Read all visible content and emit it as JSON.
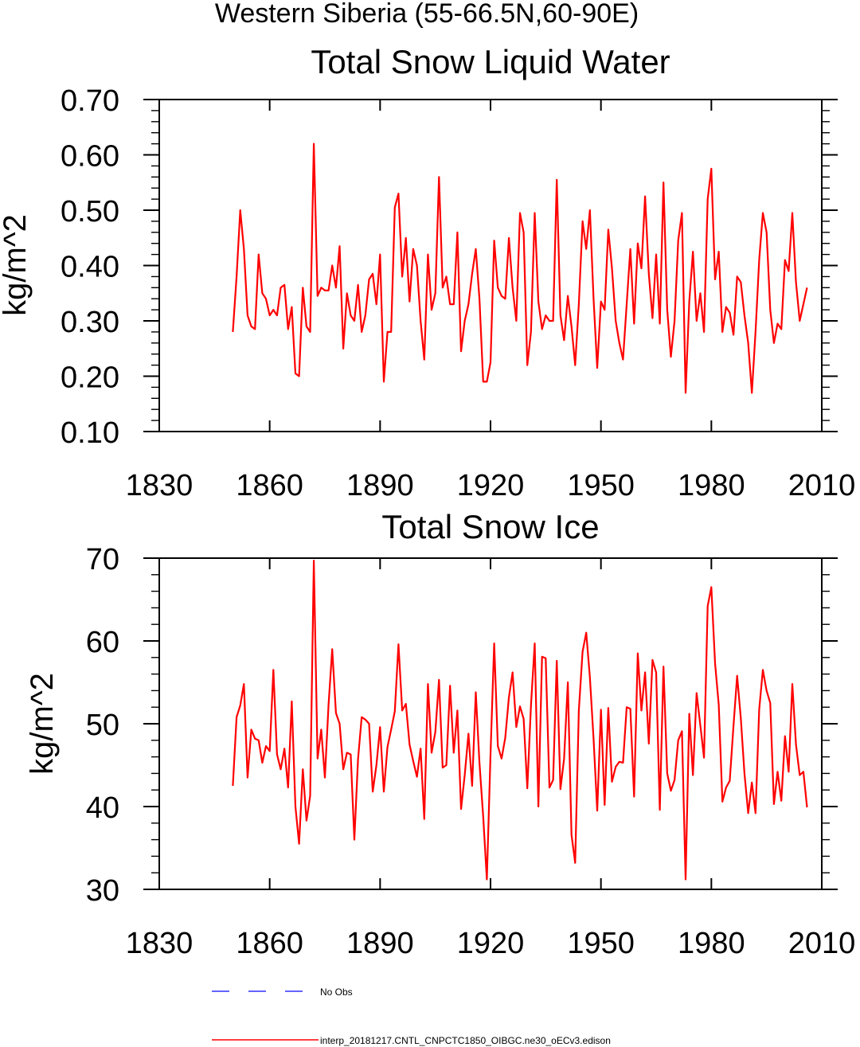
{
  "figure_title": "Western Siberia (55-66.5N,60-90E)",
  "legend": [
    {
      "label": "No Obs",
      "color": "#3030ff",
      "style": "dashed"
    },
    {
      "label": "interp_20181217.CNTL_CNPCTC1850_OIBGC.ne30_oECv3.edison",
      "color": "#ff0000",
      "style": "solid"
    }
  ],
  "chart_data": [
    {
      "type": "line",
      "title": "Total Snow Liquid Water",
      "xlabel": "",
      "ylabel": "kg/m^2",
      "xlim": [
        1830,
        2010
      ],
      "ylim": [
        0.1,
        0.7
      ],
      "xticks": [
        1830,
        1860,
        1890,
        1920,
        1950,
        1980,
        2010
      ],
      "xtick_labels": [
        "1830",
        "1860",
        "1890",
        "1920",
        "1950",
        "1980",
        "2010"
      ],
      "yticks": [
        0.1,
        0.2,
        0.3,
        0.4,
        0.5,
        0.6,
        0.7
      ],
      "ytick_labels": [
        "0.10",
        "0.20",
        "0.30",
        "0.40",
        "0.50",
        "0.60",
        "0.70"
      ],
      "series": [
        {
          "name": "interp_20181217.CNTL_CNPCTC1850_OIBGC.ne30_oECv3.edison",
          "color": "#ff0000",
          "x_start": 1850,
          "values": [
            0.28,
            0.38,
            0.5,
            0.43,
            0.31,
            0.29,
            0.285,
            0.42,
            0.35,
            0.34,
            0.31,
            0.32,
            0.31,
            0.36,
            0.365,
            0.285,
            0.325,
            0.205,
            0.2,
            0.36,
            0.29,
            0.28,
            0.62,
            0.345,
            0.36,
            0.355,
            0.355,
            0.4,
            0.36,
            0.435,
            0.25,
            0.35,
            0.31,
            0.3,
            0.365,
            0.28,
            0.31,
            0.375,
            0.385,
            0.33,
            0.42,
            0.19,
            0.28,
            0.28,
            0.505,
            0.53,
            0.38,
            0.45,
            0.335,
            0.43,
            0.4,
            0.3,
            0.23,
            0.42,
            0.32,
            0.35,
            0.56,
            0.36,
            0.38,
            0.33,
            0.33,
            0.46,
            0.245,
            0.3,
            0.33,
            0.385,
            0.43,
            0.34,
            0.19,
            0.19,
            0.225,
            0.445,
            0.36,
            0.345,
            0.34,
            0.45,
            0.36,
            0.3,
            0.495,
            0.46,
            0.22,
            0.28,
            0.495,
            0.335,
            0.285,
            0.31,
            0.3,
            0.3,
            0.555,
            0.31,
            0.265,
            0.345,
            0.29,
            0.22,
            0.33,
            0.48,
            0.43,
            0.5,
            0.34,
            0.215,
            0.335,
            0.32,
            0.465,
            0.395,
            0.3,
            0.26,
            0.23,
            0.33,
            0.43,
            0.295,
            0.44,
            0.395,
            0.525,
            0.385,
            0.305,
            0.42,
            0.295,
            0.55,
            0.32,
            0.235,
            0.3,
            0.445,
            0.495,
            0.17,
            0.335,
            0.425,
            0.3,
            0.35,
            0.28,
            0.52,
            0.575,
            0.375,
            0.425,
            0.28,
            0.325,
            0.315,
            0.275,
            0.38,
            0.37,
            0.31,
            0.26,
            0.17,
            0.28,
            0.41,
            0.495,
            0.46,
            0.32,
            0.26,
            0.295,
            0.285,
            0.41,
            0.39,
            0.495,
            0.37,
            0.3,
            0.33,
            0.36
          ]
        }
      ]
    },
    {
      "type": "line",
      "title": "Total Snow Ice",
      "xlabel": "",
      "ylabel": "kg/m^2",
      "xlim": [
        1830,
        2010
      ],
      "ylim": [
        30,
        70
      ],
      "xticks": [
        1830,
        1860,
        1890,
        1920,
        1950,
        1980,
        2010
      ],
      "xtick_labels": [
        "1830",
        "1860",
        "1890",
        "1920",
        "1950",
        "1980",
        "2010"
      ],
      "yticks": [
        30,
        40,
        50,
        60,
        70
      ],
      "ytick_labels": [
        "30",
        "40",
        "50",
        "60",
        "70"
      ],
      "series": [
        {
          "name": "interp_20181217.CNTL_CNPCTC1850_OIBGC.ne30_oECv3.edison",
          "color": "#ff0000",
          "x_start": 1850,
          "values": [
            42.5,
            50.8,
            52.2,
            54.8,
            43.5,
            49.3,
            48.2,
            48.0,
            45.3,
            47.3,
            46.7,
            56.5,
            46.3,
            44.5,
            47.0,
            42.3,
            52.7,
            40.0,
            35.5,
            44.5,
            38.3,
            41.3,
            69.7,
            45.8,
            49.3,
            43.5,
            52.3,
            59.0,
            51.3,
            50.0,
            44.5,
            46.5,
            46.3,
            36.0,
            45.7,
            50.8,
            50.5,
            50.0,
            41.8,
            45.0,
            49.6,
            41.8,
            47.2,
            49.3,
            51.5,
            59.6,
            51.6,
            52.4,
            47.5,
            45.5,
            43.6,
            47.0,
            38.5,
            54.8,
            46.5,
            49.0,
            55.3,
            44.7,
            45.0,
            54.6,
            46.5,
            51.6,
            39.7,
            43.8,
            48.8,
            42.5,
            53.8,
            45.3,
            38.8,
            31.2,
            46.3,
            59.7,
            47.3,
            45.8,
            48.3,
            53.2,
            56.2,
            49.6,
            52.1,
            50.6,
            42.2,
            52.2,
            59.7,
            40.0,
            58.1,
            57.9,
            42.3,
            43.2,
            57.6,
            42.1,
            45.8,
            55.0,
            36.6,
            33.2,
            51.6,
            58.7,
            61.0,
            55.6,
            48.2,
            39.5,
            51.7,
            40.2,
            51.9,
            43.0,
            44.8,
            45.4,
            45.3,
            52.0,
            51.8,
            41.2,
            58.5,
            51.6,
            56.2,
            47.6,
            57.7,
            56.2,
            39.6,
            56.9,
            44.0,
            41.9,
            43.2,
            48.0,
            49.1,
            31.2,
            51.2,
            43.8,
            53.7,
            49.8,
            45.9,
            64.2,
            66.5,
            57.3,
            52.3,
            40.6,
            42.3,
            43.1,
            49.7,
            55.8,
            50.7,
            44.0,
            39.2,
            42.9,
            39.2,
            51.7,
            56.5,
            54.0,
            52.5,
            40.3,
            44.2,
            40.7,
            48.5,
            44.2,
            54.8,
            47.5,
            43.8,
            44.2,
            39.9
          ]
        }
      ]
    }
  ]
}
